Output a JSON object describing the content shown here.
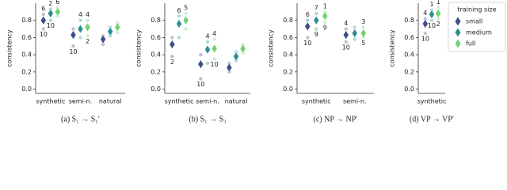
{
  "chart_data": [
    {
      "type": "dot",
      "caption": "(a) S₁ → S₁′",
      "ylabel": "consistency",
      "categories": [
        "synthetic",
        "semi-n.",
        "natural"
      ],
      "ylim": [
        -0.05,
        1.0
      ],
      "yticks": [
        {
          "value": 0,
          "label": "0.0"
        },
        0.2,
        0.4,
        0.6,
        0.8
      ],
      "series": [
        {
          "name": "small",
          "color": "#3b4f8c",
          "values": [
            0.8,
            0.63,
            0.58
          ],
          "min": [
            0.7,
            0.5,
            0.52
          ],
          "max": [
            0.87,
            0.7,
            0.62
          ],
          "max_labels": [
            6,
            null,
            null
          ],
          "min_labels": [
            10,
            10,
            null
          ]
        },
        {
          "name": "medium",
          "color": "#2a8f8f",
          "values": [
            0.88,
            0.7,
            0.67
          ],
          "min": [
            0.8,
            0.6,
            0.62
          ],
          "max": [
            0.93,
            0.8,
            0.72
          ],
          "max_labels": [
            2,
            4,
            null
          ],
          "min_labels": [
            10,
            null,
            null
          ]
        },
        {
          "name": "full",
          "color": "#6fd36f",
          "values": [
            0.9,
            0.72,
            0.72
          ],
          "min": [
            0.85,
            0.62,
            0.66
          ],
          "max": [
            0.95,
            0.8,
            0.77
          ],
          "max_labels": [
            6,
            4,
            null
          ],
          "min_labels": [
            null,
            2,
            null
          ]
        }
      ]
    },
    {
      "type": "dot",
      "caption": "(b) S₁ → S₃",
      "ylabel": "consistency",
      "categories": [
        "synthetic",
        "semi-n.",
        "natural"
      ],
      "ylim": [
        -0.05,
        1.0
      ],
      "yticks": [
        {
          "value": 0,
          "label": "0.0"
        },
        0.2,
        0.4,
        0.6,
        0.8
      ],
      "series": [
        {
          "name": "small",
          "color": "#3b4f8c",
          "values": [
            0.52,
            0.29,
            0.25
          ],
          "min": [
            0.38,
            0.12,
            0.2
          ],
          "max": [
            0.6,
            0.4,
            0.3
          ],
          "max_labels": [
            null,
            null,
            null
          ],
          "min_labels": [
            2,
            10,
            null
          ]
        },
        {
          "name": "medium",
          "color": "#2a8f8f",
          "values": [
            0.76,
            0.46,
            0.38
          ],
          "min": [
            0.6,
            0.3,
            0.33
          ],
          "max": [
            0.85,
            0.55,
            0.43
          ],
          "max_labels": [
            6,
            4,
            null
          ],
          "min_labels": [
            null,
            null,
            null
          ]
        },
        {
          "name": "full",
          "color": "#6fd36f",
          "values": [
            0.8,
            0.47,
            0.47
          ],
          "min": [
            0.7,
            0.35,
            0.42
          ],
          "max": [
            0.88,
            0.58,
            0.52
          ],
          "max_labels": [
            5,
            4,
            null
          ],
          "min_labels": [
            null,
            10,
            null
          ]
        }
      ]
    },
    {
      "type": "dot",
      "caption": "(c) NP → NP′",
      "ylabel": "consistency",
      "categories": [
        "synthetic",
        "semi-n."
      ],
      "ylim": [
        -0.05,
        1.0
      ],
      "yticks": [
        {
          "value": 0,
          "label": "0.0"
        },
        0.2,
        0.4,
        0.6,
        0.8
      ],
      "series": [
        {
          "name": "small",
          "color": "#3b4f8c",
          "values": [
            0.73,
            0.63
          ],
          "min": [
            0.6,
            0.55
          ],
          "max": [
            0.8,
            0.7
          ],
          "max_labels": [
            6,
            4
          ],
          "min_labels": [
            10,
            10
          ]
        },
        {
          "name": "medium",
          "color": "#2a8f8f",
          "values": [
            0.8,
            0.65
          ],
          "min": [
            0.7,
            0.58
          ],
          "max": [
            0.88,
            0.72
          ],
          "max_labels": [
            7,
            null
          ],
          "min_labels": [
            9,
            null
          ]
        },
        {
          "name": "full",
          "color": "#6fd36f",
          "values": [
            0.85,
            0.65
          ],
          "min": [
            0.78,
            0.6
          ],
          "max": [
            0.9,
            0.72
          ],
          "max_labels": [
            1,
            3
          ],
          "min_labels": [
            9,
            5
          ]
        }
      ]
    },
    {
      "type": "dot",
      "caption": "(d) VP → VP′",
      "ylabel": "consistency",
      "categories": [
        "synthetic"
      ],
      "ylim": [
        -0.05,
        1.0
      ],
      "yticks": [
        {
          "value": 0,
          "label": "0.0"
        },
        0.2,
        0.4,
        0.6,
        0.8
      ],
      "legend": "right",
      "legend_title": "training size",
      "series": [
        {
          "name": "small",
          "color": "#3b4f8c",
          "values": [
            0.76
          ],
          "min": [
            0.65
          ],
          "max": [
            0.82
          ],
          "max_labels": [
            4
          ],
          "min_labels": [
            10
          ]
        },
        {
          "name": "medium",
          "color": "#2a8f8f",
          "values": [
            0.87
          ],
          "min": [
            0.8
          ],
          "max": [
            0.92
          ],
          "max_labels": [
            1
          ],
          "min_labels": [
            10
          ]
        },
        {
          "name": "full",
          "color": "#6fd36f",
          "values": [
            0.88
          ],
          "min": [
            0.82
          ],
          "max": [
            0.95
          ],
          "max_labels": [
            1
          ],
          "min_labels": [
            2
          ]
        }
      ]
    }
  ]
}
